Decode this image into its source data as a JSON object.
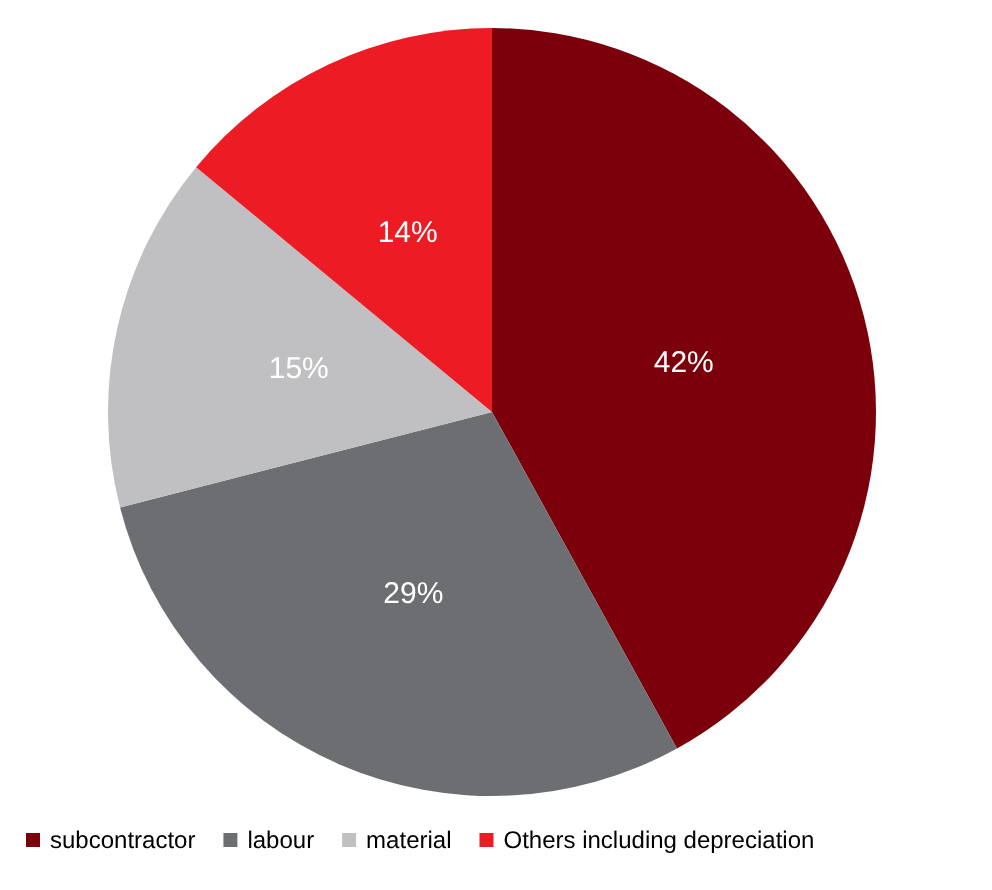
{
  "chart_data": {
    "type": "pie",
    "categories": [
      "subcontractor",
      "labour",
      "material",
      "Others including depreciation"
    ],
    "values": [
      42,
      29,
      15,
      14
    ],
    "colors": [
      "#7b000b",
      "#6d6e71",
      "#c0c0c2",
      "#ed1c24"
    ],
    "value_labels": [
      "42%",
      "29%",
      "15%",
      "14%"
    ],
    "legend": "bottom"
  }
}
